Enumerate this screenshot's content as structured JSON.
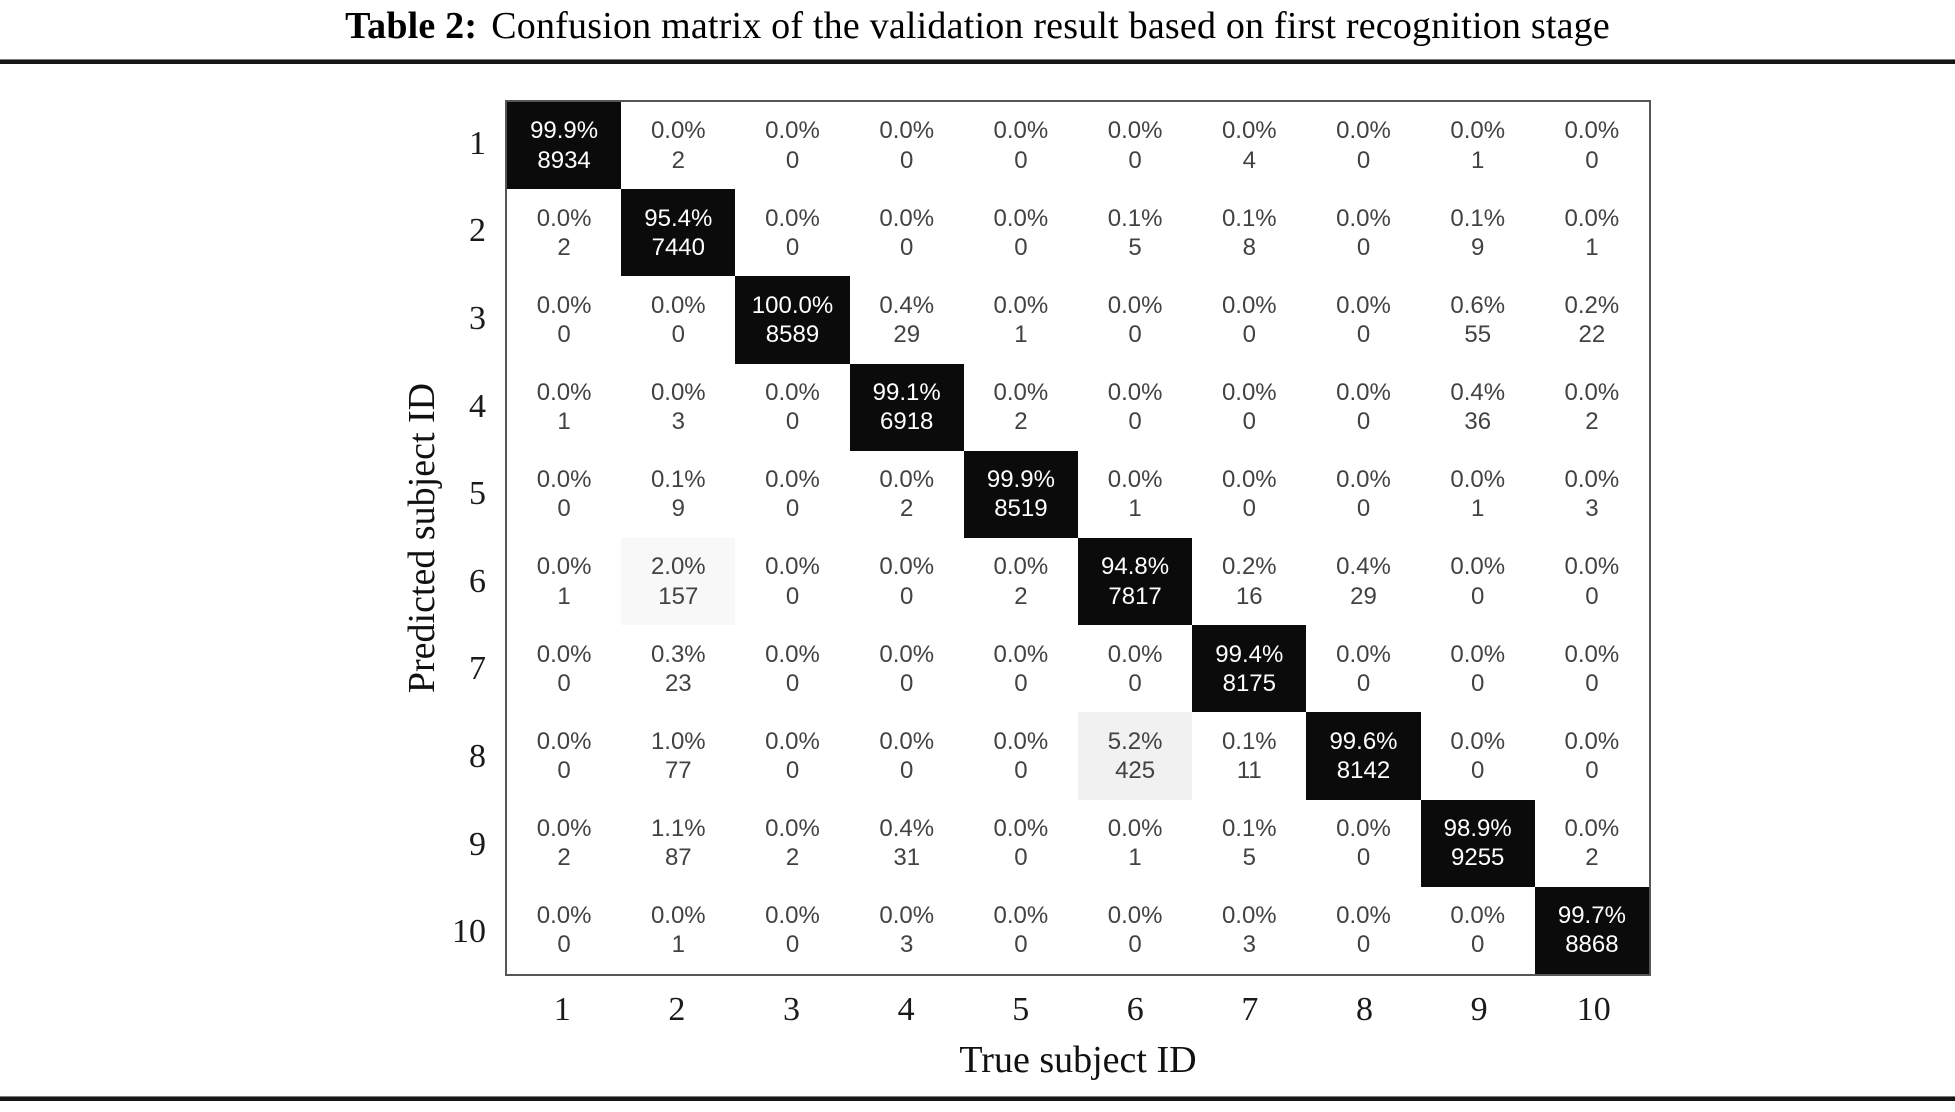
{
  "page": {
    "caption_label": "Table 2:",
    "caption_text": "Confusion matrix of the validation result based on first recognition stage"
  },
  "chart_data": {
    "type": "heatmap",
    "title": "Confusion matrix of the validation result based on first recognition stage",
    "xlabel": "True subject ID",
    "ylabel": "Predicted subject ID",
    "x_tick_labels": [
      "1",
      "2",
      "3",
      "4",
      "5",
      "6",
      "7",
      "8",
      "9",
      "10"
    ],
    "y_tick_labels": [
      "1",
      "2",
      "3",
      "4",
      "5",
      "6",
      "7",
      "8",
      "9",
      "10"
    ],
    "cell_text_color": "#424242",
    "diagonal_bg": "#0b0b0b",
    "diagonal_text_color": "#ffffff",
    "shaded_cells": [
      {
        "row": 6,
        "col": 2,
        "bg": "#f8f8f8"
      },
      {
        "row": 8,
        "col": 6,
        "bg": "#f1f1f1"
      }
    ],
    "cells": [
      [
        {
          "pct": "99.9%",
          "count": "8934"
        },
        {
          "pct": "0.0%",
          "count": "2"
        },
        {
          "pct": "0.0%",
          "count": "0"
        },
        {
          "pct": "0.0%",
          "count": "0"
        },
        {
          "pct": "0.0%",
          "count": "0"
        },
        {
          "pct": "0.0%",
          "count": "0"
        },
        {
          "pct": "0.0%",
          "count": "4"
        },
        {
          "pct": "0.0%",
          "count": "0"
        },
        {
          "pct": "0.0%",
          "count": "1"
        },
        {
          "pct": "0.0%",
          "count": "0"
        }
      ],
      [
        {
          "pct": "0.0%",
          "count": "2"
        },
        {
          "pct": "95.4%",
          "count": "7440"
        },
        {
          "pct": "0.0%",
          "count": "0"
        },
        {
          "pct": "0.0%",
          "count": "0"
        },
        {
          "pct": "0.0%",
          "count": "0"
        },
        {
          "pct": "0.1%",
          "count": "5"
        },
        {
          "pct": "0.1%",
          "count": "8"
        },
        {
          "pct": "0.0%",
          "count": "0"
        },
        {
          "pct": "0.1%",
          "count": "9"
        },
        {
          "pct": "0.0%",
          "count": "1"
        }
      ],
      [
        {
          "pct": "0.0%",
          "count": "0"
        },
        {
          "pct": "0.0%",
          "count": "0"
        },
        {
          "pct": "100.0%",
          "count": "8589"
        },
        {
          "pct": "0.4%",
          "count": "29"
        },
        {
          "pct": "0.0%",
          "count": "1"
        },
        {
          "pct": "0.0%",
          "count": "0"
        },
        {
          "pct": "0.0%",
          "count": "0"
        },
        {
          "pct": "0.0%",
          "count": "0"
        },
        {
          "pct": "0.6%",
          "count": "55"
        },
        {
          "pct": "0.2%",
          "count": "22"
        }
      ],
      [
        {
          "pct": "0.0%",
          "count": "1"
        },
        {
          "pct": "0.0%",
          "count": "3"
        },
        {
          "pct": "0.0%",
          "count": "0"
        },
        {
          "pct": "99.1%",
          "count": "6918"
        },
        {
          "pct": "0.0%",
          "count": "2"
        },
        {
          "pct": "0.0%",
          "count": "0"
        },
        {
          "pct": "0.0%",
          "count": "0"
        },
        {
          "pct": "0.0%",
          "count": "0"
        },
        {
          "pct": "0.4%",
          "count": "36"
        },
        {
          "pct": "0.0%",
          "count": "2"
        }
      ],
      [
        {
          "pct": "0.0%",
          "count": "0"
        },
        {
          "pct": "0.1%",
          "count": "9"
        },
        {
          "pct": "0.0%",
          "count": "0"
        },
        {
          "pct": "0.0%",
          "count": "2"
        },
        {
          "pct": "99.9%",
          "count": "8519"
        },
        {
          "pct": "0.0%",
          "count": "1"
        },
        {
          "pct": "0.0%",
          "count": "0"
        },
        {
          "pct": "0.0%",
          "count": "0"
        },
        {
          "pct": "0.0%",
          "count": "1"
        },
        {
          "pct": "0.0%",
          "count": "3"
        }
      ],
      [
        {
          "pct": "0.0%",
          "count": "1"
        },
        {
          "pct": "2.0%",
          "count": "157"
        },
        {
          "pct": "0.0%",
          "count": "0"
        },
        {
          "pct": "0.0%",
          "count": "0"
        },
        {
          "pct": "0.0%",
          "count": "2"
        },
        {
          "pct": "94.8%",
          "count": "7817"
        },
        {
          "pct": "0.2%",
          "count": "16"
        },
        {
          "pct": "0.4%",
          "count": "29"
        },
        {
          "pct": "0.0%",
          "count": "0"
        },
        {
          "pct": "0.0%",
          "count": "0"
        }
      ],
      [
        {
          "pct": "0.0%",
          "count": "0"
        },
        {
          "pct": "0.3%",
          "count": "23"
        },
        {
          "pct": "0.0%",
          "count": "0"
        },
        {
          "pct": "0.0%",
          "count": "0"
        },
        {
          "pct": "0.0%",
          "count": "0"
        },
        {
          "pct": "0.0%",
          "count": "0"
        },
        {
          "pct": "99.4%",
          "count": "8175"
        },
        {
          "pct": "0.0%",
          "count": "0"
        },
        {
          "pct": "0.0%",
          "count": "0"
        },
        {
          "pct": "0.0%",
          "count": "0"
        }
      ],
      [
        {
          "pct": "0.0%",
          "count": "0"
        },
        {
          "pct": "1.0%",
          "count": "77"
        },
        {
          "pct": "0.0%",
          "count": "0"
        },
        {
          "pct": "0.0%",
          "count": "0"
        },
        {
          "pct": "0.0%",
          "count": "0"
        },
        {
          "pct": "5.2%",
          "count": "425"
        },
        {
          "pct": "0.1%",
          "count": "11"
        },
        {
          "pct": "99.6%",
          "count": "8142"
        },
        {
          "pct": "0.0%",
          "count": "0"
        },
        {
          "pct": "0.0%",
          "count": "0"
        }
      ],
      [
        {
          "pct": "0.0%",
          "count": "2"
        },
        {
          "pct": "1.1%",
          "count": "87"
        },
        {
          "pct": "0.0%",
          "count": "2"
        },
        {
          "pct": "0.4%",
          "count": "31"
        },
        {
          "pct": "0.0%",
          "count": "0"
        },
        {
          "pct": "0.0%",
          "count": "1"
        },
        {
          "pct": "0.1%",
          "count": "5"
        },
        {
          "pct": "0.0%",
          "count": "0"
        },
        {
          "pct": "98.9%",
          "count": "9255"
        },
        {
          "pct": "0.0%",
          "count": "2"
        }
      ],
      [
        {
          "pct": "0.0%",
          "count": "0"
        },
        {
          "pct": "0.0%",
          "count": "1"
        },
        {
          "pct": "0.0%",
          "count": "0"
        },
        {
          "pct": "0.0%",
          "count": "3"
        },
        {
          "pct": "0.0%",
          "count": "0"
        },
        {
          "pct": "0.0%",
          "count": "0"
        },
        {
          "pct": "0.0%",
          "count": "3"
        },
        {
          "pct": "0.0%",
          "count": "0"
        },
        {
          "pct": "0.0%",
          "count": "0"
        },
        {
          "pct": "99.7%",
          "count": "8868"
        }
      ]
    ]
  }
}
